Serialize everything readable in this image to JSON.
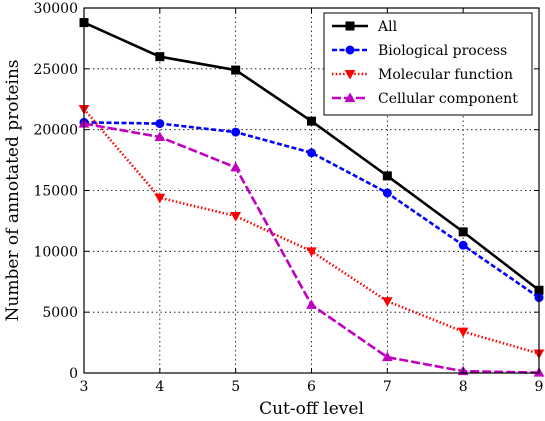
{
  "chart_data": {
    "type": "line",
    "title": "",
    "xlabel": "Cut-off level",
    "ylabel": "Number of annotated proteins",
    "x": [
      3,
      4,
      5,
      6,
      7,
      8,
      9
    ],
    "xlim": [
      3,
      9
    ],
    "ylim": [
      0,
      30000
    ],
    "xticks": [
      "3",
      "4",
      "5",
      "6",
      "7",
      "8",
      "9"
    ],
    "yticks": [
      "0",
      "5000",
      "10000",
      "15000",
      "20000",
      "25000",
      "30000"
    ],
    "grid": true,
    "legend_position": "top-right",
    "series": [
      {
        "name": "All",
        "color": "#000000",
        "marker": "square",
        "line_style": "solid",
        "values": [
          28800,
          26000,
          24900,
          20700,
          16200,
          11600,
          6800
        ]
      },
      {
        "name": "Biological process",
        "color": "#0000ff",
        "marker": "circle",
        "line_style": "dashed",
        "values": [
          20600,
          20500,
          19800,
          18100,
          14800,
          10500,
          6200
        ]
      },
      {
        "name": "Molecular function",
        "color": "#ff0000",
        "marker": "triangle-down",
        "line_style": "dotted",
        "values": [
          21700,
          14400,
          12900,
          10000,
          5900,
          3400,
          1600
        ]
      },
      {
        "name": "Cellular component",
        "color": "#c000c0",
        "marker": "triangle-up",
        "line_style": "dashdot",
        "values": [
          20500,
          19400,
          16900,
          5600,
          1300,
          150,
          30
        ]
      }
    ]
  }
}
